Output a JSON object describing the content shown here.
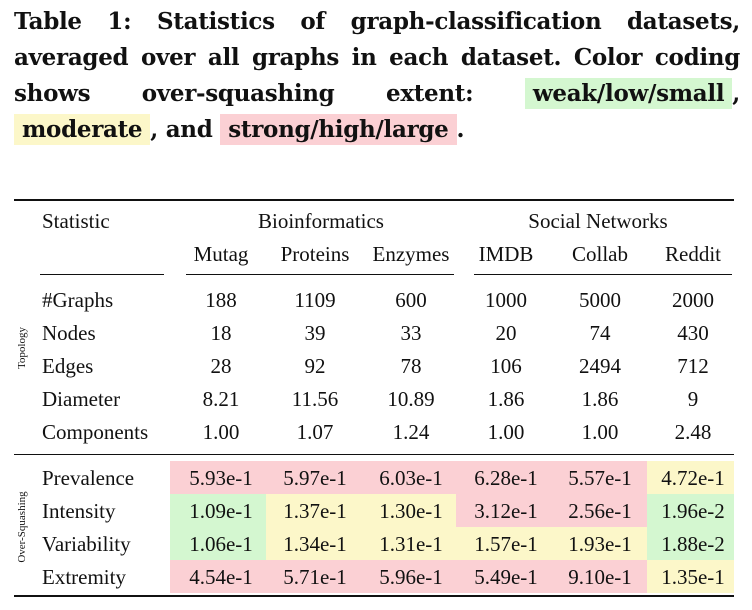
{
  "caption": {
    "prefix": "Table 1: Statistics of graph-classification datasets, averaged over all graphs in each dataset. Color coding shows over-squashing extent:",
    "weak": "weak/low/small",
    "sep1": ",",
    "moderate": "moderate",
    "sep2": ", and",
    "strong": "strong/high/large",
    "suffix": "."
  },
  "header": {
    "statistic": "Statistic",
    "group1": "Bioinformatics",
    "group2": "Social Networks",
    "datasets": [
      "Mutag",
      "Proteins",
      "Enzymes",
      "IMDB",
      "Collab",
      "Reddit"
    ]
  },
  "sections": {
    "topology": "Topology",
    "oversquashing": "Over-Squashing"
  },
  "topology_rows": [
    {
      "label": "#Graphs",
      "values": [
        "188",
        "1109",
        "600",
        "1000",
        "5000",
        "2000"
      ]
    },
    {
      "label": "Nodes",
      "values": [
        "18",
        "39",
        "33",
        "20",
        "74",
        "430"
      ]
    },
    {
      "label": "Edges",
      "values": [
        "28",
        "92",
        "78",
        "106",
        "2494",
        "712"
      ]
    },
    {
      "label": "Diameter",
      "values": [
        "8.21",
        "11.56",
        "10.89",
        "1.86",
        "1.86",
        "9"
      ]
    },
    {
      "label": "Components",
      "values": [
        "1.00",
        "1.07",
        "1.24",
        "1.00",
        "1.00",
        "2.48"
      ]
    }
  ],
  "oversquashing_rows": [
    {
      "label": "Prevalence",
      "values": [
        "5.93e-1",
        "5.97e-1",
        "6.03e-1",
        "6.28e-1",
        "5.57e-1",
        "4.72e-1"
      ],
      "levels": [
        "strong",
        "strong",
        "strong",
        "strong",
        "strong",
        "moderate"
      ]
    },
    {
      "label": "Intensity",
      "values": [
        "1.09e-1",
        "1.37e-1",
        "1.30e-1",
        "3.12e-1",
        "2.56e-1",
        "1.96e-2"
      ],
      "levels": [
        "weak",
        "moderate",
        "moderate",
        "strong",
        "strong",
        "weak"
      ]
    },
    {
      "label": "Variability",
      "values": [
        "1.06e-1",
        "1.34e-1",
        "1.31e-1",
        "1.57e-1",
        "1.93e-1",
        "1.88e-2"
      ],
      "levels": [
        "weak",
        "moderate",
        "moderate",
        "moderate",
        "moderate",
        "weak"
      ]
    },
    {
      "label": "Extremity",
      "values": [
        "4.54e-1",
        "5.71e-1",
        "5.96e-1",
        "5.49e-1",
        "9.10e-1",
        "1.35e-1"
      ],
      "levels": [
        "strong",
        "strong",
        "strong",
        "strong",
        "strong",
        "moderate"
      ]
    }
  ],
  "colors": {
    "weak": "#d4f7d0",
    "moderate": "#fcf7c9",
    "strong": "#fbd0d4"
  }
}
